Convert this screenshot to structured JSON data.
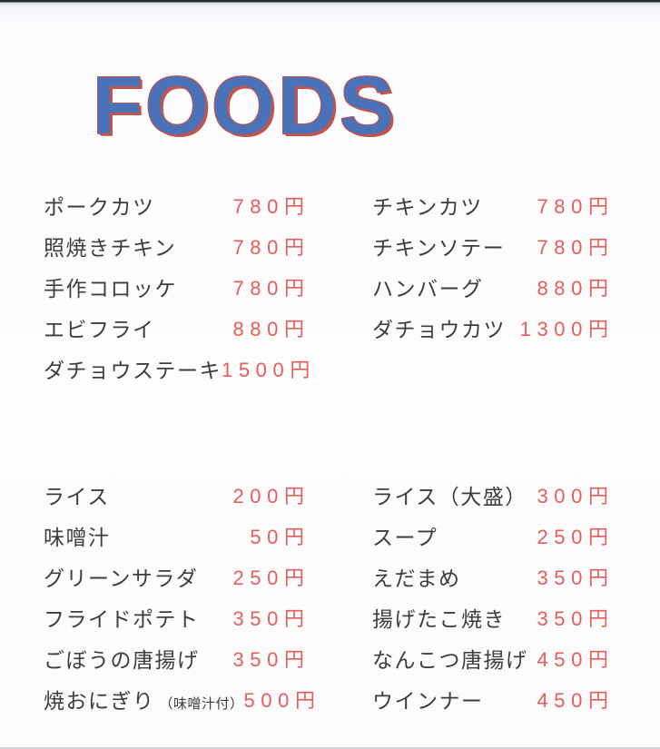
{
  "page": {
    "title": "FOODS"
  },
  "colors": {
    "title_blue": "#4a72b8",
    "title_red_outline": "#c0544e",
    "price_red": "#e85d58",
    "item_text": "#3d3d40",
    "background": "#fdfdfe"
  },
  "currency_unit": "円",
  "sections": [
    {
      "id": "mains",
      "columns": [
        {
          "items": [
            {
              "name": "ポークカツ",
              "price": "780",
              "unit": "円"
            },
            {
              "name": "照焼きチキン",
              "price": "780",
              "unit": "円"
            },
            {
              "name": "手作コロッケ",
              "price": "780",
              "unit": "円"
            },
            {
              "name": "エビフライ",
              "price": "880",
              "unit": "円"
            },
            {
              "name": "ダチョウステーキ",
              "price": "1500",
              "unit": "円"
            }
          ]
        },
        {
          "items": [
            {
              "name": "チキンカツ",
              "price": "780",
              "unit": "円"
            },
            {
              "name": "チキンソテー",
              "price": "780",
              "unit": "円"
            },
            {
              "name": "ハンバーグ",
              "price": "880",
              "unit": "円"
            },
            {
              "name": "ダチョウカツ",
              "price": "1300",
              "unit": "円"
            }
          ]
        }
      ]
    },
    {
      "id": "sides",
      "columns": [
        {
          "items": [
            {
              "name": "ライス",
              "price": "200",
              "unit": "円"
            },
            {
              "name": "味噌汁",
              "price": "50",
              "unit": "円"
            },
            {
              "name": "グリーンサラダ",
              "price": "250",
              "unit": "円"
            },
            {
              "name": "フライドポテト",
              "price": "350",
              "unit": "円"
            },
            {
              "name": "ごぼうの唐揚げ",
              "price": "350",
              "unit": "円"
            },
            {
              "name": "焼おにぎり",
              "note": "（味噌汁付）",
              "price": "500",
              "unit": "円"
            }
          ]
        },
        {
          "items": [
            {
              "name": "ライス（大盛）",
              "price": "300",
              "unit": "円"
            },
            {
              "name": "スープ",
              "price": "250",
              "unit": "円"
            },
            {
              "name": "えだまめ",
              "price": "350",
              "unit": "円"
            },
            {
              "name": "揚げたこ焼き",
              "price": "350",
              "unit": "円"
            },
            {
              "name": "なんこつ唐揚げ",
              "price": "450",
              "unit": "円"
            },
            {
              "name": "ウインナー",
              "price": "450",
              "unit": "円"
            }
          ]
        }
      ]
    }
  ]
}
